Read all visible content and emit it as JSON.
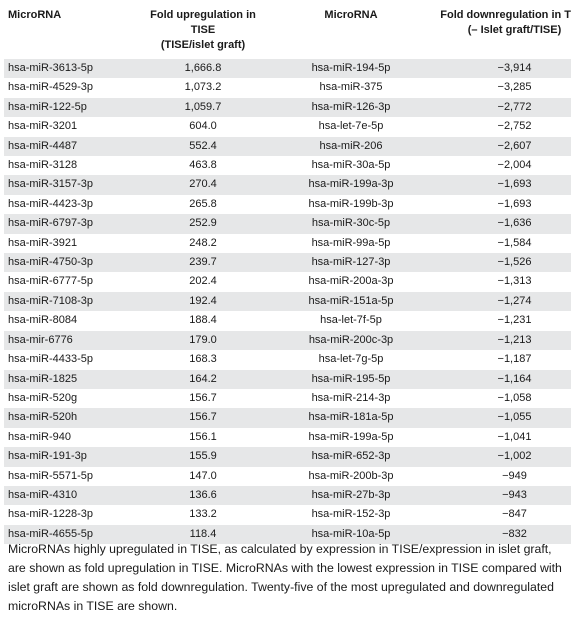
{
  "table": {
    "headers": [
      [
        "MicroRNA"
      ],
      [
        "Fold upregulation in TISE",
        "(TISE/islet graft)"
      ],
      [
        "MicroRNA"
      ],
      [
        "Fold downregulation in TISE",
        "(– Islet graft/TISE)"
      ]
    ],
    "rows": [
      [
        "hsa-miR-3613-5p",
        "1,666.8",
        "hsa-miR-194-5p",
        "−3,914"
      ],
      [
        "hsa-miR-4529-3p",
        "1,073.2",
        "hsa-miR-375",
        "−3,285"
      ],
      [
        "hsa-miR-122-5p",
        "1,059.7",
        "hsa-miR-126-3p",
        "−2,772"
      ],
      [
        "hsa-miR-3201",
        "604.0",
        "hsa-let-7e-5p",
        "−2,752"
      ],
      [
        "hsa-miR-4487",
        "552.4",
        "hsa-miR-206",
        "−2,607"
      ],
      [
        "hsa-miR-3128",
        "463.8",
        "hsa-miR-30a-5p",
        "−2,004"
      ],
      [
        "hsa-miR-3157-3p",
        "270.4",
        "hsa-miR-199a-3p",
        "−1,693"
      ],
      [
        "hsa-miR-4423-3p",
        "265.8",
        "hsa-miR-199b-3p",
        "−1,693"
      ],
      [
        "hsa-miR-6797-3p",
        "252.9",
        "hsa-miR-30c-5p",
        "−1,636"
      ],
      [
        "hsa-miR-3921",
        "248.2",
        "hsa-miR-99a-5p",
        "−1,584"
      ],
      [
        "hsa-miR-4750-3p",
        "239.7",
        "hsa-miR-127-3p",
        "−1,526"
      ],
      [
        "hsa-miR-6777-5p",
        "202.4",
        "hsa-miR-200a-3p",
        "−1,313"
      ],
      [
        "hsa-miR-7108-3p",
        "192.4",
        "hsa-miR-151a-5p",
        "−1,274"
      ],
      [
        "hsa-miR-8084",
        "188.4",
        "hsa-let-7f-5p",
        "−1,231"
      ],
      [
        "hsa-mir-6776",
        "179.0",
        "hsa-miR-200c-3p",
        "−1,213"
      ],
      [
        "hsa-miR-4433-5p",
        "168.3",
        "hsa-let-7g-5p",
        "−1,187"
      ],
      [
        "hsa-miR-1825",
        "164.2",
        "hsa-miR-195-5p",
        "−1,164"
      ],
      [
        "hsa-miR-520g",
        "156.7",
        "hsa-miR-214-3p",
        "−1,058"
      ],
      [
        "hsa-miR-520h",
        "156.7",
        "hsa-miR-181a-5p",
        "−1,055"
      ],
      [
        "hsa-miR-940",
        "156.1",
        "hsa-miR-199a-5p",
        "−1,041"
      ],
      [
        "hsa-miR-191-3p",
        "155.9",
        "hsa-miR-652-3p",
        "−1,002"
      ],
      [
        "hsa-miR-5571-5p",
        "147.0",
        "hsa-miR-200b-3p",
        "−949"
      ],
      [
        "hsa-miR-4310",
        "136.6",
        "hsa-miR-27b-3p",
        "−943"
      ],
      [
        "hsa-miR-1228-3p",
        "133.2",
        "hsa-miR-152-3p",
        "−847"
      ],
      [
        "hsa-miR-4655-5p",
        "118.4",
        "hsa-miR-10a-5p",
        "−832"
      ]
    ],
    "caption": "MicroRNAs highly upregulated in TISE, as calculated by expression in TISE/expression in islet graft, are shown as fold upregulation in TISE. MicroRNAs with the lowest expression in TISE compared with islet graft are shown as fold downregulation. Twenty-five of the most upregulated and downregulated microRNAs in TISE are shown."
  }
}
